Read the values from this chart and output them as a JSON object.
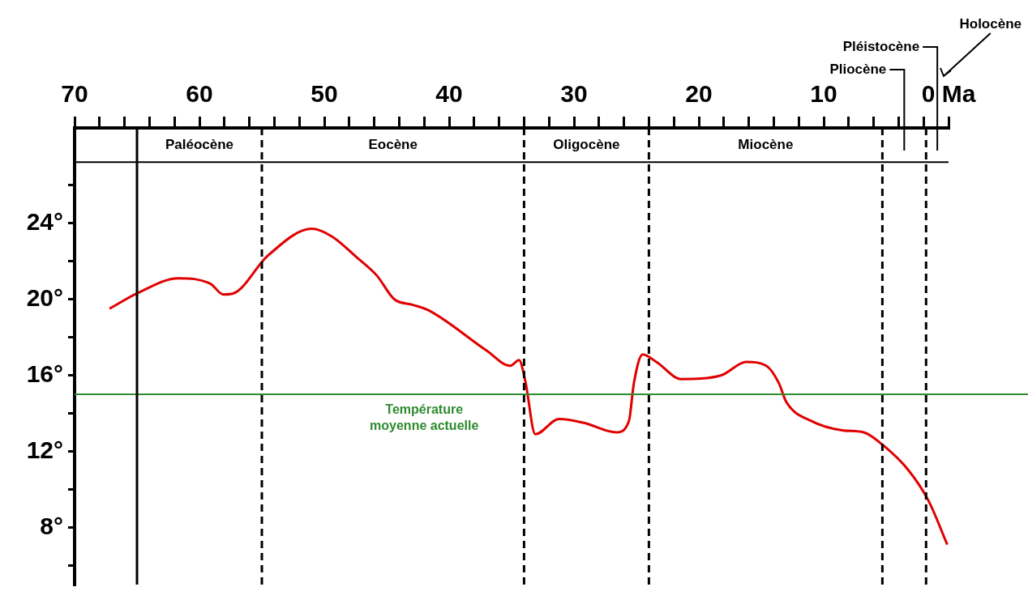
{
  "chart_data": {
    "type": "line",
    "x": [
      67.2,
      65,
      61.7,
      59.1,
      58.1,
      57.3,
      54.5,
      51,
      49.4,
      47.4,
      45.8,
      44.4,
      42.9,
      41.6,
      37,
      35.1,
      34.4,
      33.9,
      33.1,
      31.2,
      29.2,
      26.6,
      25.6,
      25.2,
      24.5,
      23.4,
      21.4,
      18.2,
      16.2,
      14.6,
      13.6,
      13,
      11,
      8.4,
      6.8,
      5.2,
      3.2,
      1.6,
      0.1
    ],
    "series": [
      {
        "color": "#e00000",
        "values": [
          19.5,
          20.3,
          21.1,
          20.8,
          20.25,
          20.3,
          22.3,
          23.7,
          23.3,
          22.2,
          21.25,
          20,
          19.7,
          19.4,
          17.3,
          16.5,
          16.8,
          15.7,
          12.9,
          13.7,
          13.5,
          13,
          13.6,
          15.6,
          17.1,
          16.7,
          15.8,
          16,
          16.7,
          16.5,
          15.6,
          14.6,
          13.6,
          13.1,
          13,
          12.3,
          11,
          9.4,
          7.1
        ]
      }
    ],
    "xlim": [
      70,
      0
    ],
    "xticks": [
      70,
      {
        "value": 68,
        "label": null
      },
      {
        "value": 66,
        "label": null
      },
      {
        "value": 64,
        "label": null
      },
      {
        "value": 62,
        "label": null
      },
      60,
      {
        "value": 58,
        "label": null
      },
      {
        "value": 56,
        "label": null
      },
      {
        "value": 54,
        "label": null
      },
      {
        "value": 52,
        "label": null
      },
      50,
      {
        "value": 48,
        "label": null
      },
      {
        "value": 46,
        "label": null
      },
      {
        "value": 44,
        "label": null
      },
      {
        "value": 42,
        "label": null
      },
      40,
      {
        "value": 38,
        "label": null
      },
      {
        "value": 36,
        "label": null
      },
      {
        "value": 34,
        "label": null
      },
      {
        "value": 32,
        "label": null
      },
      30,
      {
        "value": 28,
        "label": null
      },
      {
        "value": 26,
        "label": null
      },
      {
        "value": 24,
        "label": null
      },
      {
        "value": 22,
        "label": null
      },
      20,
      {
        "value": 18,
        "label": null
      },
      {
        "value": 16,
        "label": null
      },
      {
        "value": 14,
        "label": null
      },
      {
        "value": 12,
        "label": null
      },
      10,
      {
        "value": 8,
        "label": null
      },
      {
        "value": 6,
        "label": null
      },
      {
        "value": 4,
        "label": null
      },
      {
        "value": 2,
        "label": null
      },
      {
        "value": 0,
        "label": "0 Ma"
      }
    ],
    "ylim": [
      5,
      29
    ],
    "yticks": [
      {
        "value": 6,
        "label": null
      },
      {
        "value": 8,
        "label": "8°"
      },
      {
        "value": 10,
        "label": null
      },
      {
        "value": 12,
        "label": "12°"
      },
      {
        "value": 14,
        "label": null
      },
      {
        "value": 16,
        "label": "16°"
      },
      {
        "value": 18,
        "label": null
      },
      {
        "value": 20,
        "label": "20°"
      },
      {
        "value": 22,
        "label": null
      },
      {
        "value": 24,
        "label": "24°"
      },
      {
        "value": 26,
        "label": null
      }
    ],
    "ref_lines": [
      {
        "axis": "y",
        "value": 15,
        "label": "Température moyenne actuelle",
        "color": "#2e8b2e"
      },
      {
        "axis": "y",
        "value": 27.2,
        "color": "#000000"
      },
      {
        "axis": "x",
        "value": 65,
        "color": "#000000",
        "line_style": "solid"
      },
      {
        "axis": "x",
        "value": 55,
        "color": "#000000",
        "line_style": "dashed"
      },
      {
        "axis": "x",
        "value": 34,
        "color": "#000000",
        "line_style": "dashed"
      },
      {
        "axis": "x",
        "value": 24,
        "color": "#000000",
        "line_style": "dashed"
      },
      {
        "axis": "x",
        "value": 5.3,
        "color": "#000000",
        "line_style": "dashed"
      },
      {
        "axis": "x",
        "value": 1.8,
        "color": "#000000",
        "line_style": "dashed"
      }
    ],
    "annotations": [
      "Paléocène",
      "Eocène",
      "Oligocène",
      "Miocène",
      "Pliocène",
      "Pléistocène",
      "Holocène"
    ],
    "grid": false,
    "legend": false,
    "marker": "none",
    "line_style": "solid"
  }
}
